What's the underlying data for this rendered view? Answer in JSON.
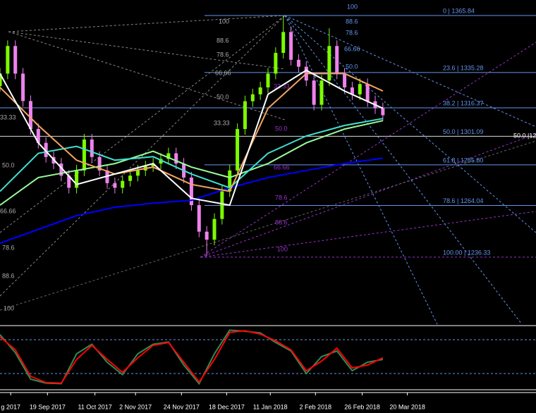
{
  "chart_data": [
    {
      "type": "candlestick",
      "xlim": [
        0,
        70
      ],
      "ylim": [
        1200.4,
        1374.15
      ],
      "xticks": [
        {
          "value": 1.4,
          "label": "g 2017"
        },
        {
          "value": 6.2,
          "label": "19 Sep 2017"
        },
        {
          "value": 12.4,
          "label": "11 Oct 2017"
        },
        {
          "value": 17.7,
          "label": "2 Nov 2017"
        },
        {
          "value": 23.7,
          "label": "24 Nov 2017"
        },
        {
          "value": 29.6,
          "label": "18 Dec 2017"
        },
        {
          "value": 35.3,
          "label": "11 Jan 2018"
        },
        {
          "value": 41.2,
          "label": "2 Feb 2018"
        },
        {
          "value": 47.3,
          "label": "26 Feb 2018"
        },
        {
          "value": 53.2,
          "label": "20 Mar 2018"
        }
      ],
      "up_color": "#7cfc00",
      "down_color": "#ee82ee",
      "open": [
        1328,
        1334.7,
        1349.5,
        1334.7,
        1320,
        1305,
        1297.6,
        1290,
        1286.5,
        1280,
        1273.5,
        1282.8,
        1299.4,
        1290,
        1282.8,
        1276,
        1273.5,
        1277.2,
        1280,
        1282.8,
        1285,
        1286.5,
        1289,
        1292,
        1286.5,
        1279,
        1264.2,
        1250,
        1245.7,
        1256.8,
        1271.6,
        1282.8,
        1305,
        1319.9,
        1323.6,
        1327.3,
        1334.7,
        1345.8,
        1357,
        1342.1,
        1338.4,
        1331,
        1318,
        1331,
        1349.5,
        1334.7,
        1327.3,
        1323.6,
        1329.1,
        1319.9,
        1316.1
      ],
      "high": [
        1337.7,
        1352.5,
        1352.5,
        1337.7,
        1323,
        1308,
        1300.6,
        1293,
        1289.5,
        1283,
        1285.8,
        1302.4,
        1302.4,
        1293,
        1285.8,
        1279,
        1280.2,
        1283,
        1285.8,
        1288,
        1289.5,
        1292,
        1295,
        1295,
        1289.5,
        1282,
        1267.2,
        1253,
        1259.8,
        1274.6,
        1285.8,
        1308,
        1322.9,
        1326.6,
        1330.3,
        1337.7,
        1348.8,
        1365.8,
        1360,
        1345.1,
        1341.4,
        1334,
        1334,
        1359,
        1352.5,
        1337.7,
        1330.3,
        1332.1,
        1332.1,
        1322.9,
        1319.1
      ],
      "low": [
        1325,
        1331.7,
        1331.7,
        1317,
        1302,
        1294.6,
        1287,
        1283.5,
        1277,
        1270.5,
        1270.5,
        1279.8,
        1287,
        1279.8,
        1273,
        1270.5,
        1270.5,
        1274.2,
        1277,
        1279.8,
        1282,
        1283.5,
        1286,
        1283.5,
        1276,
        1261.2,
        1247,
        1237,
        1242.7,
        1253.8,
        1268.6,
        1279.8,
        1302,
        1316.9,
        1320.6,
        1324.3,
        1331.7,
        1342.8,
        1339.1,
        1335.4,
        1328,
        1315,
        1315,
        1328,
        1331.7,
        1324.3,
        1320.6,
        1320.6,
        1316.9,
        1313.1,
        1309.4
      ],
      "close": [
        1334.7,
        1349.5,
        1334.7,
        1320,
        1305,
        1297.6,
        1290,
        1286.5,
        1280,
        1273.5,
        1282.8,
        1299.4,
        1290,
        1282.8,
        1276,
        1273.5,
        1277.2,
        1280,
        1282.8,
        1285,
        1286.5,
        1289,
        1292,
        1286.5,
        1279,
        1264.2,
        1250,
        1245.7,
        1256.8,
        1271.6,
        1282.8,
        1305,
        1319.9,
        1323.6,
        1327.3,
        1334.7,
        1345.8,
        1357,
        1342.1,
        1338.4,
        1331,
        1318,
        1331,
        1349.5,
        1334.7,
        1327.3,
        1323.6,
        1329.1,
        1319.9,
        1316.1,
        1312.4
      ],
      "ma_x": [
        0,
        5,
        10,
        15,
        20,
        25,
        30,
        35,
        40,
        45,
        50
      ],
      "series": [
        {
          "color": "#0000ff",
          "values": [
            1243.8,
            1251.2,
            1258.6,
            1263.1,
            1265.3,
            1266.8,
            1273.5,
            1279,
            1282.8,
            1286.5,
            1289.4
          ]
        },
        {
          "color": "#98fb98",
          "values": [
            1264.2,
            1279,
            1282.8,
            1286.5,
            1293.1,
            1284.6,
            1279,
            1286.5,
            1297.6,
            1305,
            1309.5
          ]
        },
        {
          "color": "#40e0d0",
          "values": [
            1271.6,
            1292,
            1295.7,
            1288.3,
            1290.2,
            1280.9,
            1273.5,
            1292,
            1301.3,
            1306.9,
            1310.6
          ]
        },
        {
          "color": "#f4a460",
          "values": [
            1327.3,
            1306.9,
            1288.3,
            1280.9,
            1284.6,
            1275.3,
            1271.6,
            1316.1,
            1334.7,
            1334.7,
            1325.4
          ]
        },
        {
          "color": "#ffffff",
          "values": [
            1334.7,
            1297.6,
            1275.3,
            1280.9,
            1286.5,
            1267.9,
            1264.2,
            1323.6,
            1336.5,
            1325.4,
            1316.1
          ]
        }
      ],
      "fib_levels": [
        {
          "value": 1365.84,
          "label": "0 | 1365.84"
        },
        {
          "value": 1335.28,
          "label": "23.6 | 1335.28"
        },
        {
          "value": 1316.37,
          "label": "38.2 | 1316.37"
        },
        {
          "value": 1301.09,
          "label": "50.0 | 1301.09"
        },
        {
          "value": 1285.8,
          "label": "61.8 | 1285.80"
        },
        {
          "value": 1264.04,
          "label": "78.6 | 1264.04"
        },
        {
          "value": 1236.33,
          "label": "100.00 | 1236.33"
        }
      ],
      "edge_label": "50.0 |12",
      "fan_labels_grey": [
        "100",
        "88.6",
        "78.6",
        "66.66",
        "50.0",
        "33.33",
        "33.33",
        "50.0",
        "66.66",
        "78.6",
        "88.6",
        "100"
      ],
      "fan_labels_purple": [
        "33.33",
        "50.0",
        "66.66",
        "78.6",
        "88.6",
        "100"
      ],
      "fan_labels_blue": [
        "100",
        "88.6",
        "78.6",
        "66.66",
        "50.0"
      ]
    },
    {
      "type": "line",
      "xlim": [
        0,
        70
      ],
      "ylim": [
        0,
        100
      ],
      "levels": [
        80,
        20
      ],
      "x": [
        0,
        2,
        4,
        6,
        8,
        10,
        12,
        14,
        16,
        18,
        20,
        22,
        24,
        26,
        28,
        30,
        32,
        34,
        36,
        38,
        40,
        42,
        44,
        46,
        48,
        50
      ],
      "series": [
        {
          "color": "#2e8b57",
          "values": [
            89,
            57,
            10,
            3,
            2,
            55,
            72,
            40,
            18,
            55,
            72,
            76,
            35,
            2,
            55,
            97,
            95,
            92,
            75,
            60,
            20,
            50,
            60,
            25,
            40,
            45
          ]
        },
        {
          "color": "#ff0000",
          "values": [
            85,
            62,
            15,
            4,
            3,
            45,
            70,
            45,
            22,
            48,
            70,
            75,
            40,
            5,
            45,
            93,
            96,
            90,
            78,
            62,
            25,
            42,
            65,
            30,
            35,
            48
          ]
        }
      ]
    }
  ]
}
